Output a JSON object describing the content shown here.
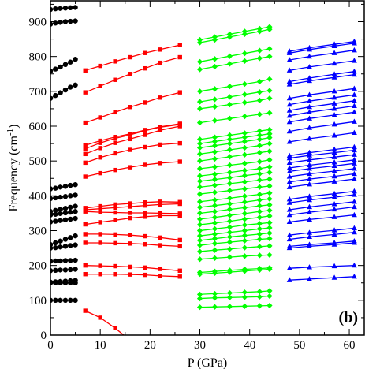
{
  "chart_data": {
    "type": "line",
    "title": "",
    "xlabel": "P (GPa)",
    "ylabel_main": "Frequency (cm",
    "ylabel_sup": "-1",
    "ylabel_close": ")",
    "panel_label": "(b)",
    "xlim": [
      0,
      63
    ],
    "ylim": [
      0,
      960
    ],
    "xticks": [
      0,
      10,
      20,
      30,
      40,
      50,
      60
    ],
    "yticks": [
      0,
      100,
      200,
      300,
      400,
      500,
      600,
      700,
      800,
      900
    ],
    "xtick_labels": [
      "0",
      "10",
      "20",
      "30",
      "40",
      "50",
      "60"
    ],
    "ytick_labels": [
      "0",
      "100",
      "200",
      "300",
      "400",
      "500",
      "600",
      "700",
      "800",
      "900"
    ],
    "minor_ticks": true,
    "grid": false,
    "legend": "none",
    "series_groups": [
      {
        "color": "#000000",
        "marker": "circle",
        "x": [
          0,
          1,
          2,
          3,
          4,
          5
        ],
        "lines": [
          [
            100,
            100,
            100,
            100,
            100,
            100
          ],
          [
            150,
            150,
            150,
            150,
            150,
            150
          ],
          [
            152,
            153,
            154,
            155,
            156,
            157
          ],
          [
            185,
            186,
            187,
            187,
            188,
            189
          ],
          [
            212,
            213,
            213,
            214,
            214,
            215
          ],
          [
            250,
            251,
            253,
            255,
            257,
            259
          ],
          [
            260,
            265,
            270,
            275,
            280,
            285
          ],
          [
            325,
            327,
            329,
            331,
            333,
            335
          ],
          [
            345,
            347,
            349,
            351,
            353,
            355
          ],
          [
            355,
            358,
            361,
            364,
            367,
            370
          ],
          [
            392,
            394,
            396,
            398,
            400,
            402
          ],
          [
            420,
            422,
            425,
            427,
            430,
            432
          ],
          [
            680,
            688,
            696,
            704,
            712,
            718
          ],
          [
            758,
            764,
            770,
            777,
            784,
            792
          ],
          [
            893,
            896,
            898,
            900,
            901,
            902
          ],
          [
            935,
            937,
            938,
            939,
            940,
            941
          ]
        ]
      },
      {
        "color": "#ff0000",
        "marker": "square",
        "x": [
          7,
          10,
          13,
          16,
          19,
          22,
          26
        ],
        "lines": [
          [
            70,
            50,
            20,
            -15,
            null,
            null,
            null
          ],
          [
            175,
            175,
            175,
            174,
            173,
            170,
            168
          ],
          [
            200,
            199,
            198,
            196,
            194,
            190,
            185
          ],
          [
            265,
            265,
            264,
            263,
            261,
            258,
            255
          ],
          [
            290,
            290,
            289,
            287,
            284,
            280,
            273
          ],
          [
            318,
            324,
            330,
            336,
            340,
            343,
            343
          ],
          [
            355,
            353,
            352,
            351,
            351,
            350,
            349
          ],
          [
            360,
            363,
            366,
            369,
            372,
            375,
            377
          ],
          [
            365,
            370,
            375,
            378,
            381,
            383,
            382
          ],
          [
            455,
            465,
            474,
            482,
            489,
            494,
            498
          ],
          [
            495,
            510,
            522,
            532,
            540,
            547,
            551
          ],
          [
            520,
            537,
            552,
            563,
            575,
            588,
            600
          ],
          [
            535,
            552,
            565,
            575,
            587,
            597,
            605
          ],
          [
            545,
            558,
            569,
            578,
            589,
            598,
            607
          ],
          [
            610,
            625,
            640,
            655,
            668,
            682,
            697
          ],
          [
            697,
            715,
            733,
            750,
            766,
            782,
            798
          ],
          [
            760,
            773,
            786,
            798,
            810,
            820,
            833
          ]
        ]
      },
      {
        "color": "#00ff00",
        "marker": "diamond",
        "x": [
          30,
          33,
          36,
          39,
          42,
          44
        ],
        "lines": [
          [
            80,
            81,
            82,
            83,
            84,
            85
          ],
          [
            105,
            107,
            108,
            109,
            110,
            112
          ],
          [
            117,
            119,
            121,
            123,
            125,
            127
          ],
          [
            175,
            178,
            181,
            184,
            187,
            189
          ],
          [
            180,
            183,
            186,
            189,
            191,
            193
          ],
          [
            218,
            221,
            224,
            227,
            229,
            230
          ],
          [
            240,
            244,
            247,
            251,
            254,
            256
          ],
          [
            258,
            263,
            267,
            271,
            275,
            277
          ],
          [
            272,
            277,
            282,
            286,
            290,
            293
          ],
          [
            285,
            290,
            295,
            300,
            305,
            308
          ],
          [
            300,
            305,
            310,
            316,
            320,
            323
          ],
          [
            317,
            322,
            327,
            333,
            338,
            342
          ],
          [
            333,
            338,
            344,
            349,
            355,
            358
          ],
          [
            350,
            355,
            361,
            366,
            371,
            374
          ],
          [
            367,
            372,
            377,
            382,
            388,
            391
          ],
          [
            383,
            388,
            393,
            399,
            404,
            408
          ],
          [
            405,
            410,
            415,
            420,
            425,
            428
          ],
          [
            425,
            430,
            435,
            440,
            445,
            448
          ],
          [
            442,
            447,
            452,
            458,
            463,
            467
          ],
          [
            457,
            462,
            467,
            473,
            478,
            483
          ],
          [
            478,
            483,
            488,
            493,
            498,
            503
          ],
          [
            500,
            506,
            512,
            518,
            524,
            528
          ],
          [
            520,
            526,
            532,
            538,
            544,
            550
          ],
          [
            538,
            544,
            550,
            556,
            562,
            567
          ],
          [
            550,
            556,
            562,
            568,
            574,
            578
          ],
          [
            562,
            568,
            574,
            580,
            586,
            590
          ],
          [
            610,
            616,
            622,
            628,
            634,
            638
          ],
          [
            650,
            656,
            662,
            668,
            674,
            680
          ],
          [
            670,
            677,
            684,
            691,
            698,
            702
          ],
          [
            700,
            707,
            714,
            721,
            728,
            735
          ],
          [
            763,
            771,
            779,
            787,
            795,
            800
          ],
          [
            785,
            793,
            801,
            809,
            817,
            822
          ],
          [
            840,
            848,
            856,
            864,
            872,
            878
          ],
          [
            848,
            856,
            864,
            872,
            880,
            885
          ]
        ]
      },
      {
        "color": "#0000ff",
        "marker": "triangle",
        "x": [
          48,
          52,
          57,
          61
        ],
        "lines": [
          [
            158,
            161,
            165,
            168
          ],
          [
            192,
            195,
            198,
            200
          ],
          [
            250,
            255,
            260,
            265
          ],
          [
            255,
            260,
            265,
            270
          ],
          [
            275,
            282,
            289,
            295
          ],
          [
            287,
            294,
            301,
            307
          ],
          [
            325,
            332,
            339,
            345
          ],
          [
            345,
            353,
            361,
            368
          ],
          [
            360,
            368,
            376,
            383
          ],
          [
            380,
            388,
            396,
            403
          ],
          [
            390,
            398,
            406,
            413
          ],
          [
            425,
            433,
            441,
            448
          ],
          [
            440,
            448,
            456,
            463
          ],
          [
            455,
            463,
            471,
            478
          ],
          [
            470,
            478,
            486,
            493
          ],
          [
            480,
            488,
            496,
            503
          ],
          [
            495,
            503,
            511,
            518
          ],
          [
            508,
            516,
            524,
            531
          ],
          [
            515,
            524,
            533,
            540
          ],
          [
            555,
            564,
            573,
            581
          ],
          [
            585,
            595,
            605,
            613
          ],
          [
            612,
            622,
            632,
            640
          ],
          [
            630,
            640,
            650,
            658
          ],
          [
            645,
            655,
            665,
            673
          ],
          [
            662,
            672,
            682,
            690
          ],
          [
            680,
            690,
            700,
            708
          ],
          [
            720,
            730,
            740,
            748
          ],
          [
            728,
            738,
            749,
            757
          ],
          [
            760,
            770,
            780,
            788
          ],
          [
            790,
            800,
            810,
            818
          ],
          [
            810,
            820,
            830,
            838
          ],
          [
            815,
            825,
            835,
            843
          ]
        ]
      }
    ]
  }
}
